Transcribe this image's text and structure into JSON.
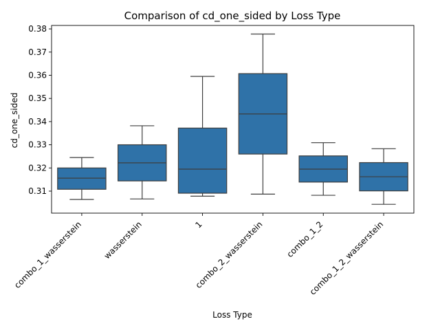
{
  "chart_data": {
    "type": "box",
    "title": "Comparison of cd_one_sided by Loss Type",
    "xlabel": "Loss Type",
    "ylabel": "cd_one_sided",
    "ylim": [
      0.3005,
      0.3815
    ],
    "yticks": [
      0.31,
      0.32,
      0.33,
      0.34,
      0.35,
      0.36,
      0.37,
      0.38
    ],
    "ytick_labels": [
      "0.31",
      "0.32",
      "0.33",
      "0.34",
      "0.35",
      "0.36",
      "0.37",
      "0.38"
    ],
    "categories": [
      "combo_1_wasserstein",
      "wasserstein",
      "1",
      "combo_2_wasserstein",
      "combo_1_2",
      "combo_1_2_wasserstein"
    ],
    "boxes": [
      {
        "whisker_low": 0.3064,
        "q1": 0.3108,
        "median": 0.3156,
        "q3": 0.32,
        "whisker_high": 0.3245
      },
      {
        "whisker_low": 0.3066,
        "q1": 0.3144,
        "median": 0.3222,
        "q3": 0.33,
        "whisker_high": 0.3382
      },
      {
        "whisker_low": 0.3078,
        "q1": 0.3091,
        "median": 0.3195,
        "q3": 0.3372,
        "whisker_high": 0.3595
      },
      {
        "whisker_low": 0.3087,
        "q1": 0.326,
        "median": 0.3433,
        "q3": 0.3607,
        "whisker_high": 0.3778
      },
      {
        "whisker_low": 0.3082,
        "q1": 0.3139,
        "median": 0.3195,
        "q3": 0.3252,
        "whisker_high": 0.3309
      },
      {
        "whisker_low": 0.3043,
        "q1": 0.3101,
        "median": 0.3162,
        "q3": 0.3223,
        "whisker_high": 0.3283
      }
    ],
    "colors": {
      "box_fill": "#2f72a8",
      "line": "#3d3d3d",
      "axis": "#000000"
    },
    "grid": false,
    "legend": "none"
  }
}
